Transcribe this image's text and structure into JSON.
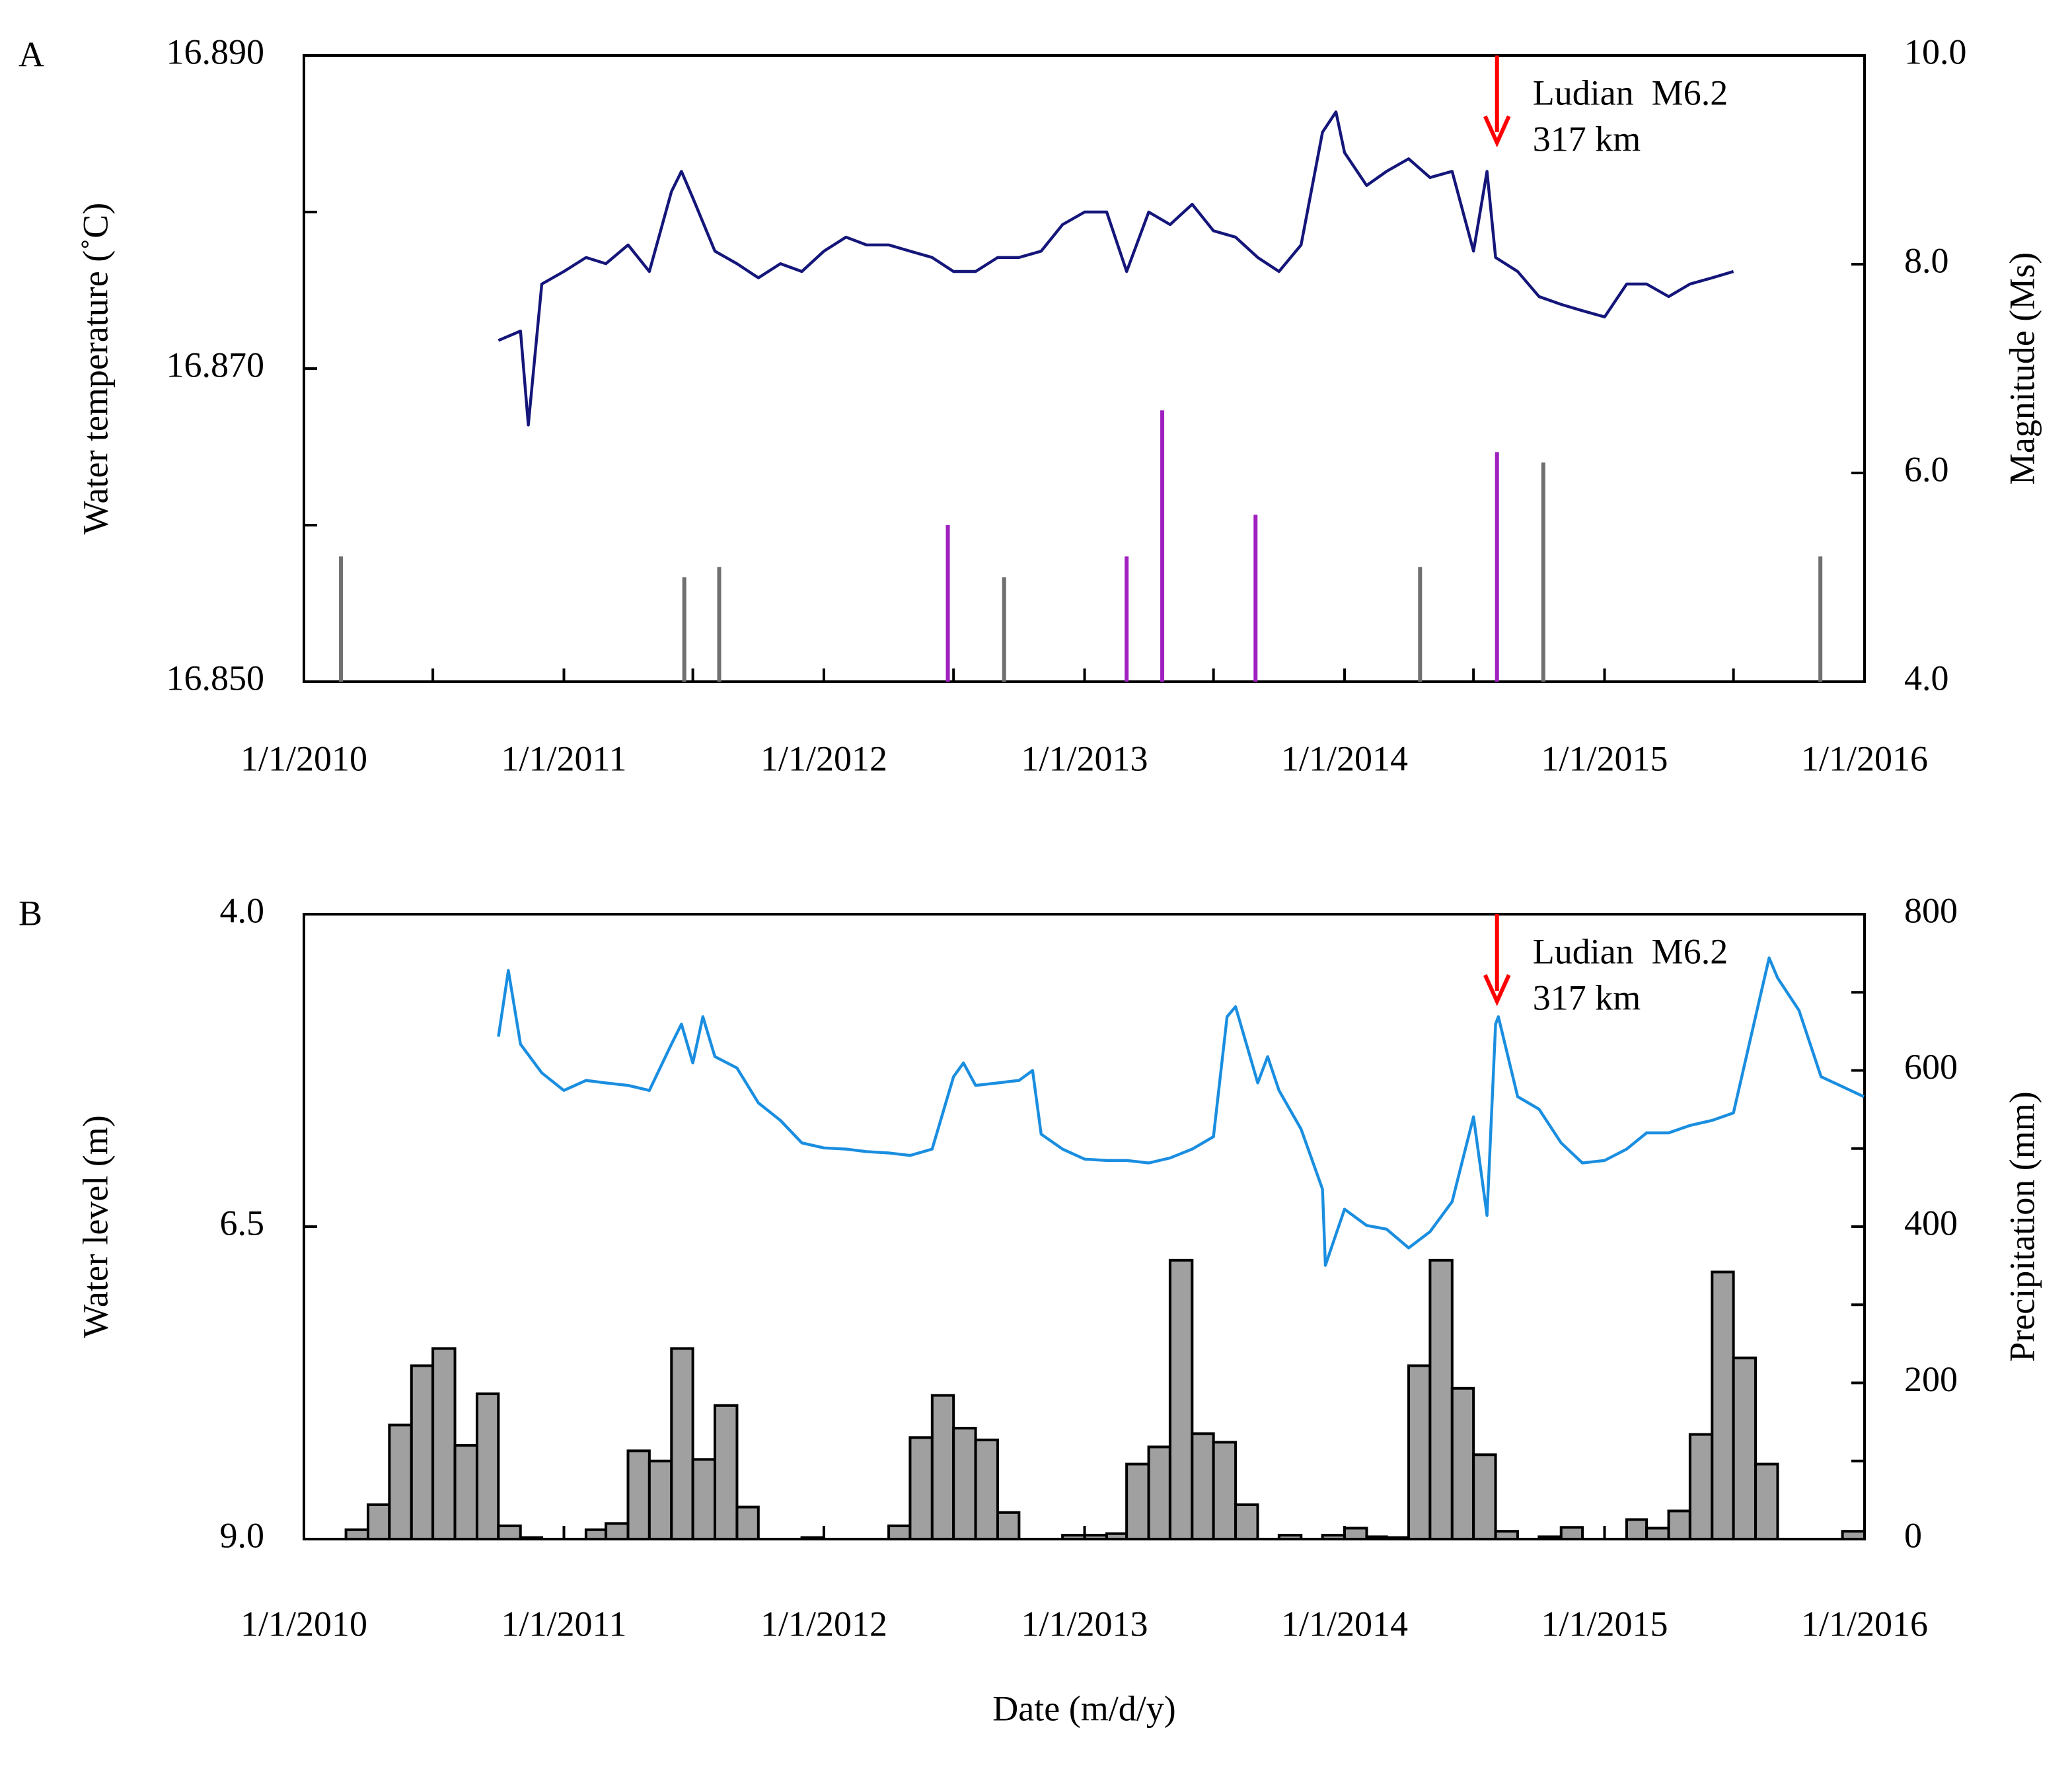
{
  "chart_data": [
    {
      "type": "line",
      "panel_label": "A",
      "ylabel": "Water temperature (˚C)",
      "y2label": "Magnitude (Ms)",
      "xlim": [
        "1/1/2010",
        "1/1/2016"
      ],
      "xticks": [
        "1/1/2010",
        "1/1/2011",
        "1/1/2012",
        "1/1/2013",
        "1/1/2014",
        "1/1/2015",
        "1/1/2016"
      ],
      "xminorticks": [
        "7/1/2010",
        "7/1/2011",
        "7/1/2012",
        "7/1/2013",
        "7/1/2014",
        "7/1/2015"
      ],
      "ylim": [
        16.85,
        16.89
      ],
      "yticks": [
        {
          "value": 16.85,
          "label": "16.850"
        },
        {
          "value": 16.87,
          "label": "16.870"
        },
        {
          "value": 16.89,
          "label": "16.890"
        }
      ],
      "yminorticks": [
        16.86,
        16.88
      ],
      "y2lim": [
        4,
        10
      ],
      "y2ticks": [
        {
          "value": 4,
          "label": "4.0"
        },
        {
          "value": 6,
          "label": "6.0"
        },
        {
          "value": 8,
          "label": "8.0"
        },
        {
          "value": 10,
          "label": "10.0"
        }
      ],
      "series": [
        {
          "kind": "line",
          "color": "#14167a",
          "x": [
            "10/1/2010",
            "11/1/2010",
            "11/12/2010",
            "12/1/2010",
            "1/1/2011",
            "2/1/2011",
            "3/1/2011",
            "4/1/2011",
            "5/1/2011",
            "6/1/2011",
            "6/15/2011",
            "7/1/2011",
            "8/1/2011",
            "9/1/2011",
            "10/1/2011",
            "11/1/2011",
            "12/1/2011",
            "1/1/2012",
            "2/1/2012",
            "3/1/2012",
            "4/1/2012",
            "5/1/2012",
            "6/1/2012",
            "7/1/2012",
            "8/1/2012",
            "9/1/2012",
            "10/1/2012",
            "11/1/2012",
            "12/1/2012",
            "1/1/2013",
            "2/1/2013",
            "3/1/2013",
            "4/1/2013",
            "5/1/2013",
            "6/1/2013",
            "7/1/2013",
            "8/1/2013",
            "9/1/2013",
            "10/1/2013",
            "11/1/2013",
            "12/1/2013",
            "12/20/2013",
            "1/1/2014",
            "2/1/2014",
            "3/1/2014",
            "4/1/2014",
            "5/1/2014",
            "6/1/2014",
            "7/1/2014",
            "7/20/2014",
            "8/1/2014",
            "9/1/2014",
            "10/1/2014",
            "11/1/2014",
            "12/1/2014",
            "1/1/2015",
            "2/1/2015",
            "3/1/2015",
            "4/1/2015",
            "5/1/2015",
            "6/1/2015",
            "7/1/2015"
          ],
          "values": [
            16.8718,
            16.8724,
            16.8664,
            16.8754,
            16.8762,
            16.8771,
            16.8767,
            16.8779,
            16.8762,
            16.8813,
            16.8826,
            16.8809,
            16.8775,
            16.8767,
            16.8758,
            16.8767,
            16.8762,
            16.8775,
            16.8784,
            16.8779,
            16.8779,
            16.8775,
            16.8771,
            16.8762,
            16.8762,
            16.8771,
            16.8771,
            16.8775,
            16.8792,
            16.88,
            16.88,
            16.8762,
            16.88,
            16.8792,
            16.8805,
            16.8788,
            16.8784,
            16.8771,
            16.8762,
            16.8779,
            16.8851,
            16.8864,
            16.8838,
            16.8817,
            16.8826,
            16.8834,
            16.8822,
            16.8826,
            16.8775,
            16.8826,
            16.8771,
            16.8762,
            16.8746,
            16.8741,
            16.8737,
            16.8733,
            16.8754,
            16.8754,
            16.8746,
            16.8754,
            16.8758,
            16.8762
          ]
        },
        {
          "kind": "stem",
          "axis": "y2",
          "color": "#707070",
          "x": [
            "2/22/2010",
            "6/19/2011",
            "8/7/2011",
            "9/10/2012",
            "4/17/2014",
            "10/7/2014",
            "10/31/2015"
          ],
          "values": [
            5.2,
            5.0,
            5.1,
            5.0,
            5.1,
            6.1,
            5.2
          ]
        },
        {
          "kind": "stem",
          "axis": "y2",
          "color": "#a020c0",
          "x": [
            "6/23/2012",
            "3/1/2013",
            "4/20/2013",
            "8/29/2013",
            "8/3/2014"
          ],
          "values": [
            5.5,
            5.2,
            6.6,
            5.6,
            6.2
          ]
        }
      ],
      "annotation": {
        "lines": [
          "Ludian  M6.2",
          "317 km"
        ],
        "x": "8/3/2014",
        "color": "#ff0000"
      }
    },
    {
      "type": "line",
      "panel_label": "B",
      "ylabel": "Water level (m)",
      "y2label": "Precipitation (mm)",
      "xlabel": "Date (m/d/y)",
      "xlim": [
        "1/1/2010",
        "1/1/2016"
      ],
      "xticks": [
        "1/1/2010",
        "1/1/2011",
        "1/1/2012",
        "1/1/2013",
        "1/1/2014",
        "1/1/2015",
        "1/1/2016"
      ],
      "ylim": [
        9,
        4
      ],
      "yticks": [
        {
          "value": 4,
          "label": "4.0"
        },
        {
          "value": 6.5,
          "label": "6.5"
        },
        {
          "value": 9,
          "label": "9.0"
        }
      ],
      "y2lim": [
        0,
        800
      ],
      "y2ticks": [
        0,
        200,
        400,
        600,
        800
      ],
      "y2minorticks": [
        100,
        300,
        500,
        700
      ],
      "series": [
        {
          "kind": "line",
          "color": "#1a8ee0",
          "x": [
            "10/1/2010",
            "10/15/2010",
            "11/1/2010",
            "12/1/2010",
            "1/1/2011",
            "2/1/2011",
            "3/1/2011",
            "4/1/2011",
            "5/1/2011",
            "6/1/2011",
            "6/15/2011",
            "7/1/2011",
            "7/15/2011",
            "8/1/2011",
            "9/1/2011",
            "10/1/2011",
            "11/1/2011",
            "12/1/2011",
            "1/1/2012",
            "2/1/2012",
            "3/1/2012",
            "4/1/2012",
            "5/1/2012",
            "6/1/2012",
            "7/1/2012",
            "7/15/2012",
            "8/1/2012",
            "9/1/2012",
            "10/1/2012",
            "10/20/2012",
            "11/1/2012",
            "12/1/2012",
            "1/1/2013",
            "2/1/2013",
            "3/1/2013",
            "4/1/2013",
            "5/1/2013",
            "6/1/2013",
            "7/1/2013",
            "7/20/2013",
            "8/1/2013",
            "9/1/2013",
            "9/15/2013",
            "10/1/2013",
            "11/1/2013",
            "12/1/2013",
            "12/5/2013",
            "1/1/2014",
            "2/1/2014",
            "3/1/2014",
            "4/1/2014",
            "5/1/2014",
            "6/1/2014",
            "7/1/2014",
            "7/20/2014",
            "8/1/2014",
            "8/5/2014",
            "9/1/2014",
            "10/1/2014",
            "11/1/2014",
            "12/1/2014",
            "1/1/2015",
            "2/1/2015",
            "3/1/2015",
            "4/1/2015",
            "5/1/2015",
            "6/1/2015",
            "7/1/2015",
            "8/1/2015",
            "8/20/2015",
            "9/1/2015",
            "10/1/2015",
            "11/1/2015",
            "12/31/2015"
          ],
          "values": [
            4.98,
            4.45,
            5.04,
            5.27,
            5.41,
            5.33,
            5.35,
            5.37,
            5.41,
            5.04,
            4.88,
            5.19,
            4.82,
            5.14,
            5.23,
            5.51,
            5.65,
            5.83,
            5.87,
            5.88,
            5.9,
            5.91,
            5.93,
            5.88,
            5.3,
            5.19,
            5.37,
            5.35,
            5.33,
            5.25,
            5.76,
            5.88,
            5.96,
            5.97,
            5.97,
            5.99,
            5.95,
            5.88,
            5.78,
            4.82,
            4.74,
            5.35,
            5.14,
            5.41,
            5.72,
            6.2,
            6.81,
            6.36,
            6.49,
            6.52,
            6.67,
            6.54,
            6.3,
            5.62,
            6.41,
            4.88,
            4.82,
            5.46,
            5.56,
            5.83,
            5.99,
            5.97,
            5.88,
            5.75,
            5.75,
            5.69,
            5.65,
            5.59,
            4.82,
            4.35,
            4.51,
            4.77,
            5.3,
            5.46
          ]
        },
        {
          "kind": "bar",
          "axis": "y2",
          "color": "#a0a0a0",
          "x": [
            "1/1/2010",
            "2/1/2010",
            "3/1/2010",
            "4/1/2010",
            "5/1/2010",
            "6/1/2010",
            "7/1/2010",
            "8/1/2010",
            "9/1/2010",
            "10/1/2010",
            "11/1/2010",
            "12/1/2010",
            "1/1/2011",
            "2/1/2011",
            "3/1/2011",
            "4/1/2011",
            "5/1/2011",
            "6/1/2011",
            "7/1/2011",
            "8/1/2011",
            "9/1/2011",
            "10/1/2011",
            "11/1/2011",
            "12/1/2011",
            "1/1/2012",
            "2/1/2012",
            "3/1/2012",
            "4/1/2012",
            "5/1/2012",
            "6/1/2012",
            "7/1/2012",
            "8/1/2012",
            "9/1/2012",
            "10/1/2012",
            "11/1/2012",
            "12/1/2012",
            "1/1/2013",
            "2/1/2013",
            "3/1/2013",
            "4/1/2013",
            "5/1/2013",
            "6/1/2013",
            "7/1/2013",
            "8/1/2013",
            "9/1/2013",
            "10/1/2013",
            "11/1/2013",
            "12/1/2013",
            "1/1/2014",
            "2/1/2014",
            "3/1/2014",
            "4/1/2014",
            "5/1/2014",
            "6/1/2014",
            "7/1/2014",
            "8/1/2014",
            "9/1/2014",
            "10/1/2014",
            "11/1/2014",
            "12/1/2014",
            "1/1/2015",
            "2/1/2015",
            "3/1/2015",
            "4/1/2015",
            "5/1/2015",
            "6/1/2015",
            "7/1/2015",
            "8/1/2015",
            "9/1/2015",
            "10/1/2015",
            "11/1/2015",
            "12/1/2015"
          ],
          "values": [
            0,
            0,
            12,
            44,
            146,
            222,
            244,
            120,
            186,
            17,
            2,
            0,
            0,
            12,
            20,
            113,
            100,
            244,
            102,
            171,
            41,
            0,
            0,
            2,
            0,
            0,
            0,
            17,
            130,
            184,
            142,
            127,
            34,
            0,
            0,
            5,
            5,
            7,
            96,
            118,
            357,
            135,
            124,
            44,
            0,
            5,
            0,
            5,
            14,
            3,
            2,
            222,
            357,
            193,
            108,
            10,
            0,
            3,
            15,
            0,
            0,
            25,
            14,
            36,
            134,
            342,
            232,
            96,
            0,
            0,
            0,
            10
          ]
        }
      ],
      "annotation": {
        "lines": [
          "Ludian  M6.2",
          "317 km"
        ],
        "x": "8/3/2014",
        "color": "#ff0000"
      }
    }
  ]
}
